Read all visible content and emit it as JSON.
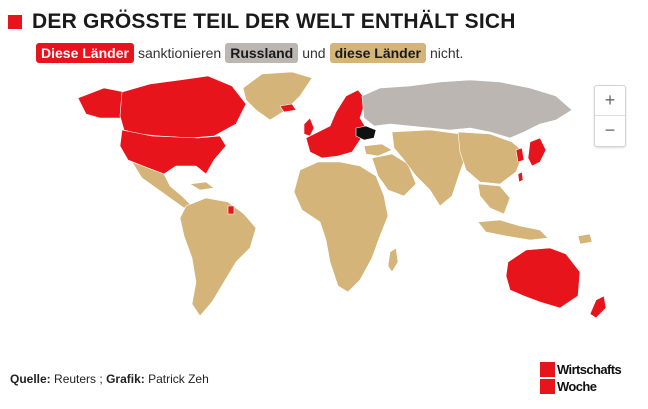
{
  "header": {
    "title": "DER GRÖSSTE TEIL DER WELT ENTHÄLT SICH"
  },
  "legend": {
    "sanctioning_label": "Diese Länder",
    "text_sanction": "sanktionieren",
    "russia_label": "Russland",
    "text_and": "und",
    "abstaining_label": "diese Länder",
    "text_not": "nicht."
  },
  "colors": {
    "sanctioning": "#e8141c",
    "russia": "#bcb6b3",
    "abstaining": "#d4b479",
    "ukraine": "#111111"
  },
  "zoom": {
    "in_label": "+",
    "out_label": "−"
  },
  "footer": {
    "source_label": "Quelle:",
    "source_value": "Reuters ;",
    "graphic_label": "Grafik:",
    "graphic_value": "Patrick Zeh"
  },
  "logo": {
    "line1": "Wirtschafts",
    "line2": "Woche"
  },
  "icons": [
    "title-square-icon",
    "zoom-in-icon",
    "zoom-out-icon",
    "logo-square-icon"
  ]
}
